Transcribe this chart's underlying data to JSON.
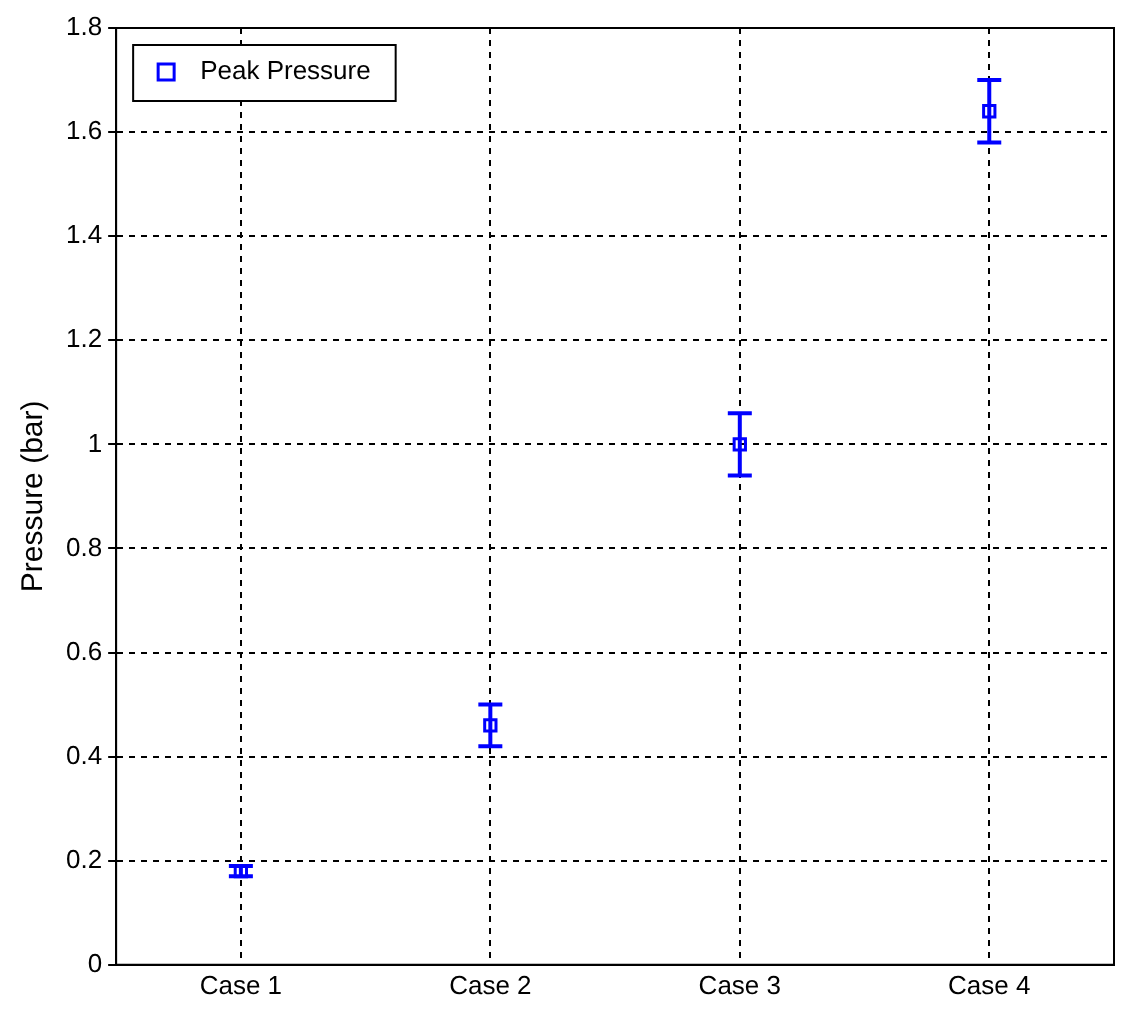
{
  "chart_data": {
    "type": "scatter",
    "ylabel": "Pressure (bar)",
    "categories": [
      "Case 1",
      "Case 2",
      "Case 3",
      "Case 4"
    ],
    "series": [
      {
        "name": "Peak Pressure",
        "color": "#0000ff",
        "values": [
          0.18,
          0.46,
          1.0,
          1.64
        ],
        "errors": [
          0.01,
          0.04,
          0.06,
          0.06
        ]
      }
    ],
    "ylim": [
      0,
      1.8
    ],
    "yticks": [
      0,
      0.2,
      0.4,
      0.6,
      0.8,
      1,
      1.2,
      1.4,
      1.6,
      1.8
    ],
    "grid": true,
    "legend": "top left",
    "marker": "square"
  }
}
